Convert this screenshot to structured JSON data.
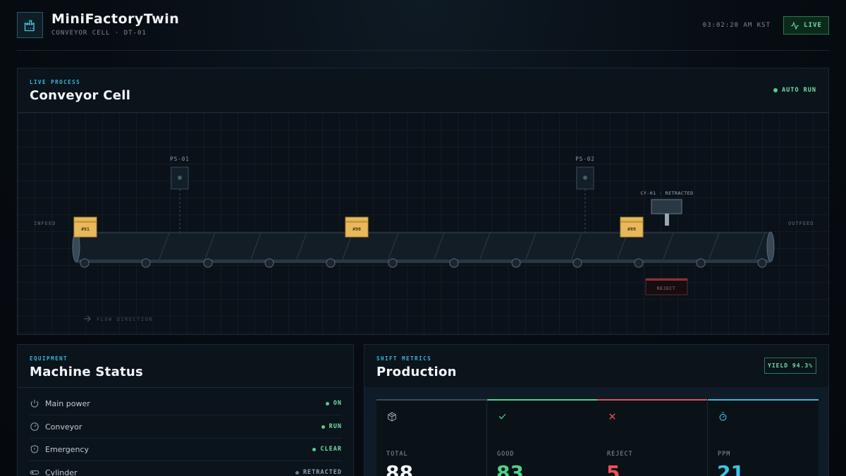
{
  "app": {
    "title": "MiniFactoryTwin",
    "subtitle": "CONVEYOR CELL · DT-01",
    "clock": "03:02:20 AM KST",
    "live_label": "LIVE"
  },
  "conveyor": {
    "eyebrow": "LIVE PROCESS",
    "title": "Conveyor Cell",
    "run_state": "AUTO RUN",
    "infeed": "INFEED",
    "outfeed": "OUTFEED",
    "sensors": [
      "PS-01",
      "PS-02"
    ],
    "cylinder": "CY-01 · RETRACTED",
    "reject_bin": "REJECT",
    "flow": "FLOW DIRECTION",
    "parts": [
      "#91",
      "#90",
      "#89"
    ]
  },
  "machine": {
    "eyebrow": "EQUIPMENT",
    "title": "Machine Status",
    "rows": [
      {
        "label": "Main power",
        "value": "ON",
        "color": "#6fe0a0",
        "icon": "power-icon"
      },
      {
        "label": "Conveyor",
        "value": "RUN",
        "color": "#6fe0a0",
        "icon": "gauge-icon"
      },
      {
        "label": "Emergency",
        "value": "CLEAR",
        "color": "#6fe0a0",
        "icon": "shield-icon"
      },
      {
        "label": "Cylinder",
        "value": "RETRACTED",
        "color": "#8ea0ae",
        "icon": "cylinder-icon"
      }
    ]
  },
  "production": {
    "eyebrow": "SHIFT METRICS",
    "title": "Production",
    "yield": "YIELD 94.3%",
    "metrics": [
      {
        "label": "TOTAL",
        "value": "88",
        "color": "#f2f6f9",
        "accent": "#3a4a58",
        "icon": "box-icon"
      },
      {
        "label": "GOOD",
        "value": "83",
        "color": "#4fd18a",
        "accent": "#4fd18a",
        "icon": "check-icon"
      },
      {
        "label": "REJECT",
        "value": "5",
        "color": "#f0505a",
        "accent": "#d9545c",
        "icon": "x-icon"
      },
      {
        "label": "PPM",
        "value": "21",
        "color": "#38c6e8",
        "accent": "#38b6d8",
        "icon": "timer-icon"
      }
    ]
  }
}
